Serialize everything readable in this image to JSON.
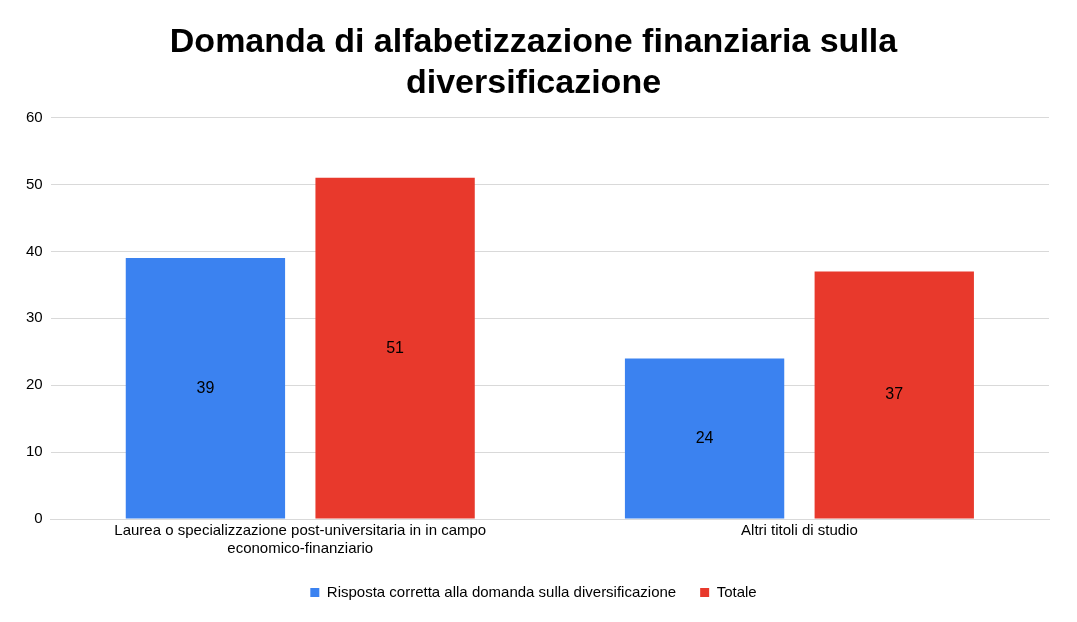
{
  "chart_data": {
    "type": "bar",
    "title": "Domanda di alfabetizzazione finanziaria sulla diversificazione",
    "categories": [
      "Laurea o specializzazione post-universitaria in in campo economico-finanziario",
      "Altri titoli di studio"
    ],
    "series": [
      {
        "name": "Risposta corretta alla domanda sulla diversificazione",
        "color": "#3b82f0",
        "values": [
          39,
          24
        ]
      },
      {
        "name": "Totale",
        "color": "#e8392c",
        "values": [
          51,
          37
        ]
      }
    ],
    "ylim": [
      0,
      60
    ],
    "yticks": [
      0,
      10,
      20,
      30,
      40,
      50,
      60
    ],
    "grid": "y",
    "legend": "bottom",
    "data_labels": true
  }
}
